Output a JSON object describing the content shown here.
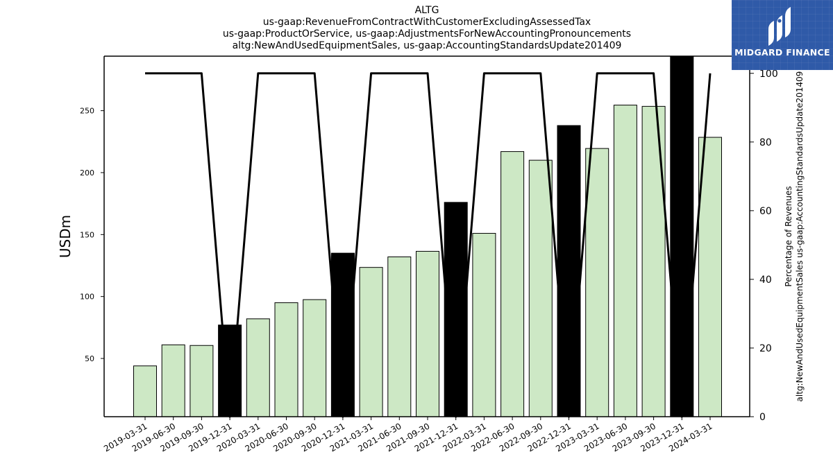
{
  "titles": [
    "ALTG",
    "us-gaap:RevenueFromContractWithCustomerExcludingAssessedTax",
    "us-gaap:ProductOrService, us-gaap:AdjustmentsForNewAccountingPronouncements",
    "altg:NewAndUsedEquipmentSales, us-gaap:AccountingStandardsUpdate201409"
  ],
  "logo": {
    "text": "MIDGARD FINANCE",
    "icon": "midgard-logo-mark",
    "bg_color": "#2f5aa8"
  },
  "chart_data": {
    "type": "bar",
    "categories": [
      "2019-03-31",
      "2019-06-30",
      "2019-09-30",
      "2019-12-31",
      "2020-03-31",
      "2020-06-30",
      "2020-09-30",
      "2020-12-31",
      "2021-03-31",
      "2021-06-30",
      "2021-09-30",
      "2021-12-31",
      "2022-03-31",
      "2022-06-30",
      "2022-09-30",
      "2022-12-31",
      "2023-03-31",
      "2023-06-30",
      "2023-09-30",
      "2023-12-31",
      "2024-03-31"
    ],
    "values": [
      44,
      61,
      60.5,
      77,
      82,
      95,
      97.5,
      135,
      123.5,
      132,
      136.5,
      176,
      151,
      217,
      210,
      238,
      219.5,
      254.5,
      253.5,
      296,
      228.5
    ],
    "bar_colors": [
      "#cde8c5",
      "#cde8c5",
      "#cde8c5",
      "#000000",
      "#cde8c5",
      "#cde8c5",
      "#cde8c5",
      "#000000",
      "#cde8c5",
      "#cde8c5",
      "#cde8c5",
      "#000000",
      "#cde8c5",
      "#cde8c5",
      "#cde8c5",
      "#000000",
      "#cde8c5",
      "#cde8c5",
      "#cde8c5",
      "#000000",
      "#cde8c5"
    ],
    "ylabel": "USDm",
    "ylim": [
      3,
      294
    ],
    "yticks": [
      50,
      100,
      150,
      200,
      250
    ],
    "line_series": {
      "axis": "right",
      "values": [
        100,
        100,
        100,
        0,
        100,
        100,
        100,
        0,
        100,
        100,
        100,
        0,
        100,
        100,
        100,
        0,
        100,
        100,
        100,
        0,
        100
      ],
      "color": "#000000"
    },
    "y2label_lines": [
      "Percentage of Revenues",
      "altg:NewAndUsedEquipmentSales us-gaap:AccountingStandardsUpdate201409"
    ],
    "y2lim": [
      0,
      105
    ],
    "y2ticks": [
      0,
      20,
      40,
      60,
      80,
      100
    ],
    "grid": false
  }
}
